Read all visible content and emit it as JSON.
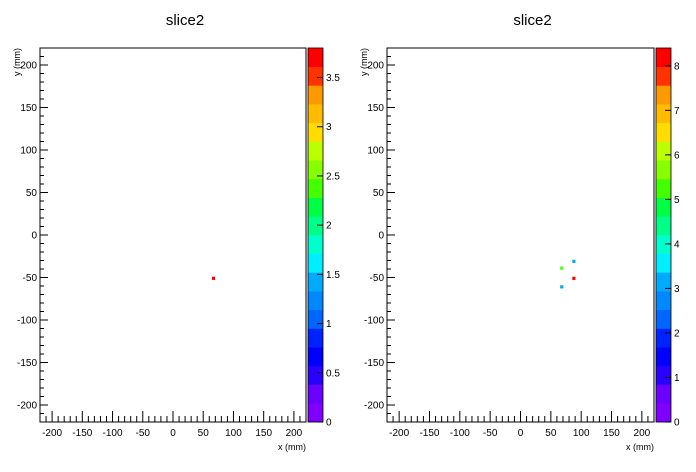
{
  "chart_data": [
    {
      "type": "heatmap",
      "title": "slice2",
      "xlabel": "x (mm)",
      "ylabel": "y (mm)",
      "xlim": [
        -220,
        220
      ],
      "ylim": [
        -220,
        220
      ],
      "x_ticks": [
        -200,
        -150,
        -100,
        -50,
        0,
        50,
        100,
        150,
        200
      ],
      "y_ticks": [
        -200,
        -150,
        -100,
        -50,
        0,
        50,
        100,
        150,
        200
      ],
      "z_range": [
        0,
        3.8
      ],
      "z_ticks": [
        0,
        0.5,
        1,
        1.5,
        2,
        2.5,
        3,
        3.5
      ],
      "z_tick_labels": [
        "0",
        "0.5",
        "1",
        "1.5",
        "2",
        "2.5",
        "3",
        "3.5"
      ],
      "points": [
        {
          "x": 67,
          "y": -51,
          "z": 3.8
        }
      ]
    },
    {
      "type": "heatmap",
      "title": "slice2",
      "xlabel": "x (mm)",
      "ylabel": "y (mm)",
      "xlim": [
        -220,
        220
      ],
      "ylim": [
        -220,
        220
      ],
      "x_ticks": [
        -200,
        -150,
        -100,
        -50,
        0,
        50,
        100,
        150,
        200
      ],
      "y_ticks": [
        -200,
        -150,
        -100,
        -50,
        0,
        50,
        100,
        150,
        200
      ],
      "z_range": [
        0,
        8.4
      ],
      "z_ticks": [
        0,
        1,
        2,
        3,
        4,
        5,
        6,
        7,
        8
      ],
      "z_tick_labels": [
        "0",
        "1",
        "2",
        "3",
        "4",
        "5",
        "6",
        "7",
        "8"
      ],
      "points": [
        {
          "x": 88,
          "y": -31,
          "z": 3
        },
        {
          "x": 68,
          "y": -39,
          "z": 5.5
        },
        {
          "x": 88,
          "y": -51,
          "z": 8.4
        },
        {
          "x": 68,
          "y": -61,
          "z": 3
        }
      ]
    }
  ]
}
